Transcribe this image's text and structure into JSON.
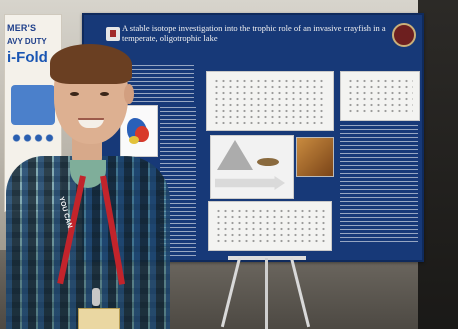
{
  "banner": {
    "line1": "MER'S",
    "line2": "AVY DUTY",
    "line3": "i-Fold"
  },
  "poster": {
    "title": "A stable isotope investigation into the trophic role of an invasive crayfish in a temperate, oligotrophic lake"
  },
  "person": {
    "lanyard_text": "YOU CAN"
  }
}
